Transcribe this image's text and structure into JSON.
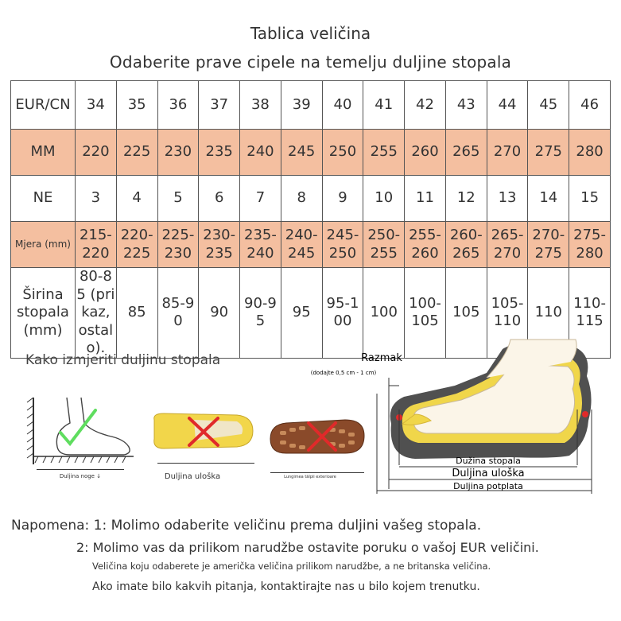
{
  "header": {
    "title": "Tablica veličina",
    "subtitle": "Odaberite prave cipele na temelju duljine stopala"
  },
  "table": {
    "rows": [
      {
        "label": "EUR/CN",
        "style": "white",
        "cells": [
          "34",
          "35",
          "36",
          "37",
          "38",
          "39",
          "40",
          "41",
          "42",
          "43",
          "44",
          "45",
          "46"
        ]
      },
      {
        "label": "MM",
        "style": "peach",
        "cells": [
          "220",
          "225",
          "230",
          "235",
          "240",
          "245",
          "250",
          "255",
          "260",
          "265",
          "270",
          "275",
          "280"
        ]
      },
      {
        "label": "NE",
        "style": "white",
        "cells": [
          "3",
          "4",
          "5",
          "6",
          "7",
          "8",
          "9",
          "10",
          "11",
          "12",
          "13",
          "14",
          "15"
        ]
      },
      {
        "label": "Mjera (mm)",
        "style": "peach",
        "cells": [
          "215-220",
          "220-225",
          "225-230",
          "230-235",
          "235-240",
          "240-245",
          "245-250",
          "250-255",
          "255-260",
          "260-265",
          "265-270",
          "270-275",
          "275-280"
        ]
      },
      {
        "label": "Širina stopala (mm)",
        "style": "white",
        "cells": [
          "80-85 (prikaz, ostalo).",
          "85",
          "85-90",
          "90",
          "90-95",
          "95",
          "95-100",
          "100",
          "100-105",
          "105",
          "105-110",
          "110",
          "110-115"
        ]
      }
    ]
  },
  "measure": {
    "section_title": "Kako izmjeriti duljinu stopala",
    "caption_foot": "Duljina noge ↓",
    "caption_insole": "Duljina uloška",
    "caption_sole": "Lungimea tălpii exterioare",
    "diagram": {
      "gap_label": "Razmak",
      "gap_note": "(dodajte 0,5 cm - 1 cm)",
      "foot_length": "Dužina stopala",
      "insole_length": "Duljina uloška",
      "sole_length": "Duljina potplata"
    }
  },
  "notes": {
    "n1": "Napomena: 1: Molimo odaberite veličinu prema duljini vašeg stopala.",
    "n2": "2: Molimo vas da prilikom narudžbe ostavite poruku o vašoj EUR veličini.",
    "n3": "Veličina koju odaberete je američka veličina prilikom narudžbe, a ne britanska veličina.",
    "n4": "Ako imate bilo kakvih pitanja, kontaktirajte nas u bilo kojem trenutku."
  },
  "colors": {
    "peach": "#f4bfa0",
    "check_green": "#5fdd5f",
    "cross_red": "#e02a2a",
    "insole_yellow": "#f2d64a",
    "sole_brown": "#8a4a2a"
  }
}
